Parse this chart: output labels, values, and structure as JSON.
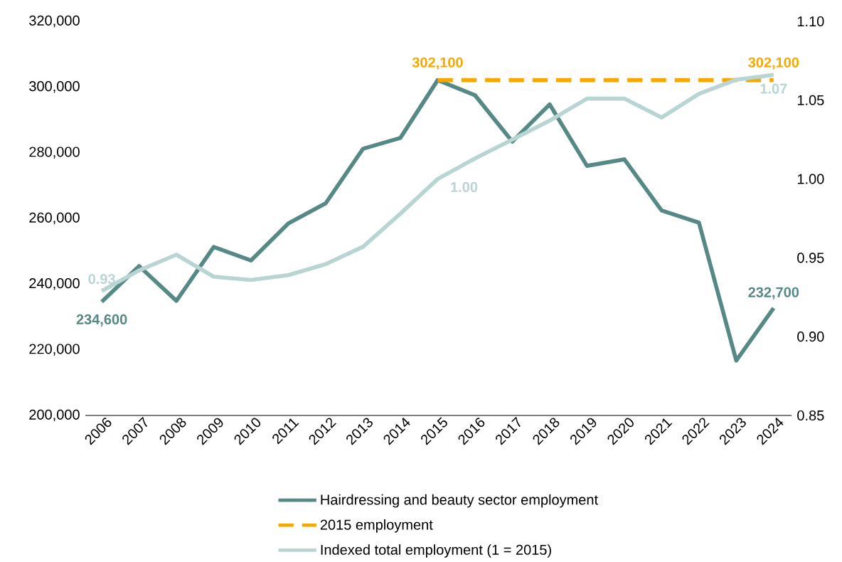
{
  "chart_data": {
    "type": "line",
    "categories": [
      "2006",
      "2007",
      "2008",
      "2009",
      "2010",
      "2011",
      "2012",
      "2013",
      "2014",
      "2015",
      "2016",
      "2017",
      "2018",
      "2019",
      "2020",
      "2021",
      "2022",
      "2023",
      "2024"
    ],
    "series": [
      {
        "name": "Hairdressing and beauty sector employment",
        "color": "#568985",
        "line_style": "solid",
        "values": [
          234600,
          245500,
          234900,
          251300,
          247200,
          258500,
          264600,
          281200,
          284500,
          302100,
          297500,
          283400,
          294700,
          276000,
          278000,
          262400,
          258700,
          216700,
          232700
        ],
        "value_labels": [
          "234,600",
          null,
          null,
          null,
          null,
          null,
          null,
          null,
          null,
          null,
          null,
          null,
          null,
          null,
          null,
          null,
          null,
          null,
          "232,700"
        ]
      },
      {
        "name": "2015 employment",
        "color": "#f5a800",
        "line_style": "dashed",
        "values": [
          null,
          null,
          null,
          null,
          null,
          null,
          null,
          null,
          null,
          302100,
          302100,
          302100,
          302100,
          302100,
          302100,
          302100,
          302100,
          302100,
          302100
        ],
        "value_labels": [
          null,
          null,
          null,
          null,
          null,
          null,
          null,
          null,
          null,
          "302,100",
          null,
          null,
          null,
          null,
          null,
          null,
          null,
          null,
          "302,100"
        ]
      },
      {
        "name": "Indexed total employment (1 = 2015)",
        "color": "#b8d4d3",
        "line_style": "solid",
        "axis": "y2",
        "values": [
          0.929,
          0.942,
          0.952,
          0.938,
          0.936,
          0.939,
          0.946,
          0.957,
          0.978,
          1.0,
          1.013,
          1.025,
          1.037,
          1.051,
          1.051,
          1.039,
          1.054,
          1.063,
          1.066
        ],
        "value_labels": [
          "0.93",
          null,
          null,
          null,
          null,
          null,
          null,
          null,
          null,
          "1.00",
          null,
          null,
          null,
          null,
          null,
          null,
          null,
          null,
          "1.07"
        ]
      }
    ],
    "ylim": [
      200000,
      320000
    ],
    "yticks": [
      {
        "value": 200000,
        "label": "200,000"
      },
      {
        "value": 220000,
        "label": "220,000"
      },
      {
        "value": 240000,
        "label": "240,000"
      },
      {
        "value": 260000,
        "label": "260,000"
      },
      {
        "value": 280000,
        "label": "280,000"
      },
      {
        "value": 300000,
        "label": "300,000"
      },
      {
        "value": 320000,
        "label": "320,000"
      }
    ],
    "y2lim": [
      0.85,
      1.1
    ],
    "y2ticks": [
      {
        "value": 0.85,
        "label": "0.85"
      },
      {
        "value": 0.9,
        "label": "0.90"
      },
      {
        "value": 0.95,
        "label": "0.95"
      },
      {
        "value": 1.0,
        "label": "1.00"
      },
      {
        "value": 1.05,
        "label": "1.05"
      },
      {
        "value": 1.1,
        "label": "1.10"
      }
    ],
    "grid": false,
    "legend": "bottom"
  }
}
